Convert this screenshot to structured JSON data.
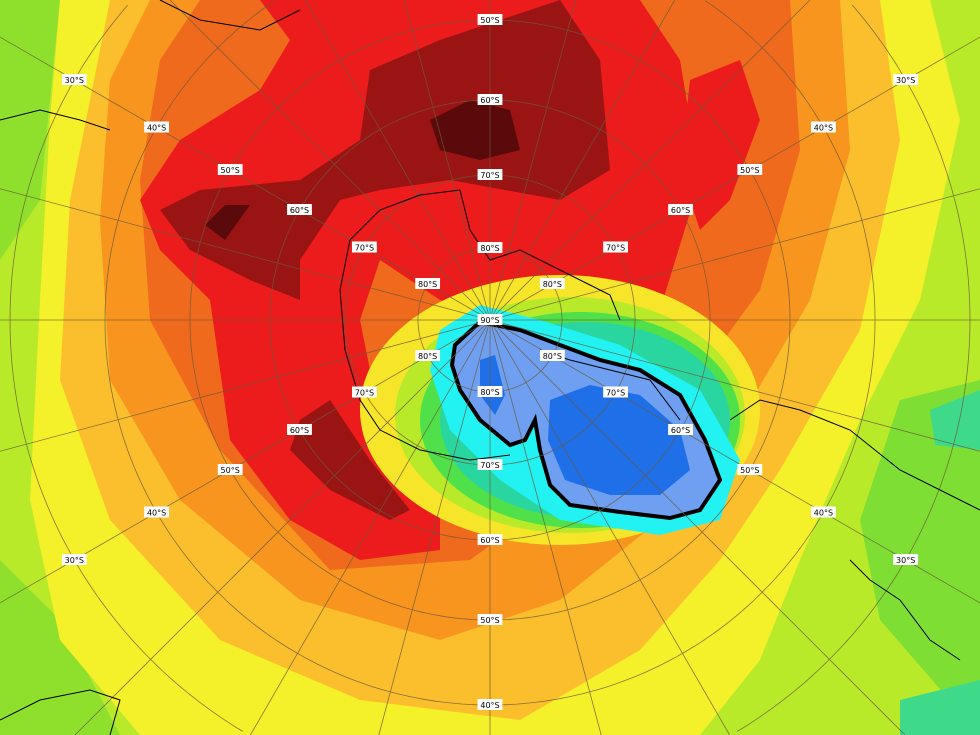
{
  "map": {
    "projection": "south-polar-stereographic",
    "colors": {
      "background_green": "#9be22c",
      "yellow_green": "#d6f02a",
      "yellow": "#f7f229",
      "light_orange": "#fbbf2e",
      "orange": "#f7951f",
      "dark_orange": "#f06a1d",
      "red": "#ec1c1c",
      "dark_red": "#9a1414",
      "darkest_red": "#5a0a0a",
      "green": "#4fe04a",
      "teal": "#2ad6a0",
      "cyan": "#22f2f2",
      "light_blue": "#6fa0f0",
      "blue": "#1f6fe8",
      "hole_outline": "#000000",
      "grid": "#6b5a3a",
      "coast": "#000000"
    },
    "pole_label": "90°S",
    "ring_labels": {
      "r80": "80°S",
      "r70": "70°S",
      "r60": "60°S",
      "r50": "50°S",
      "r40": "40°S",
      "r30": "30°S"
    }
  }
}
